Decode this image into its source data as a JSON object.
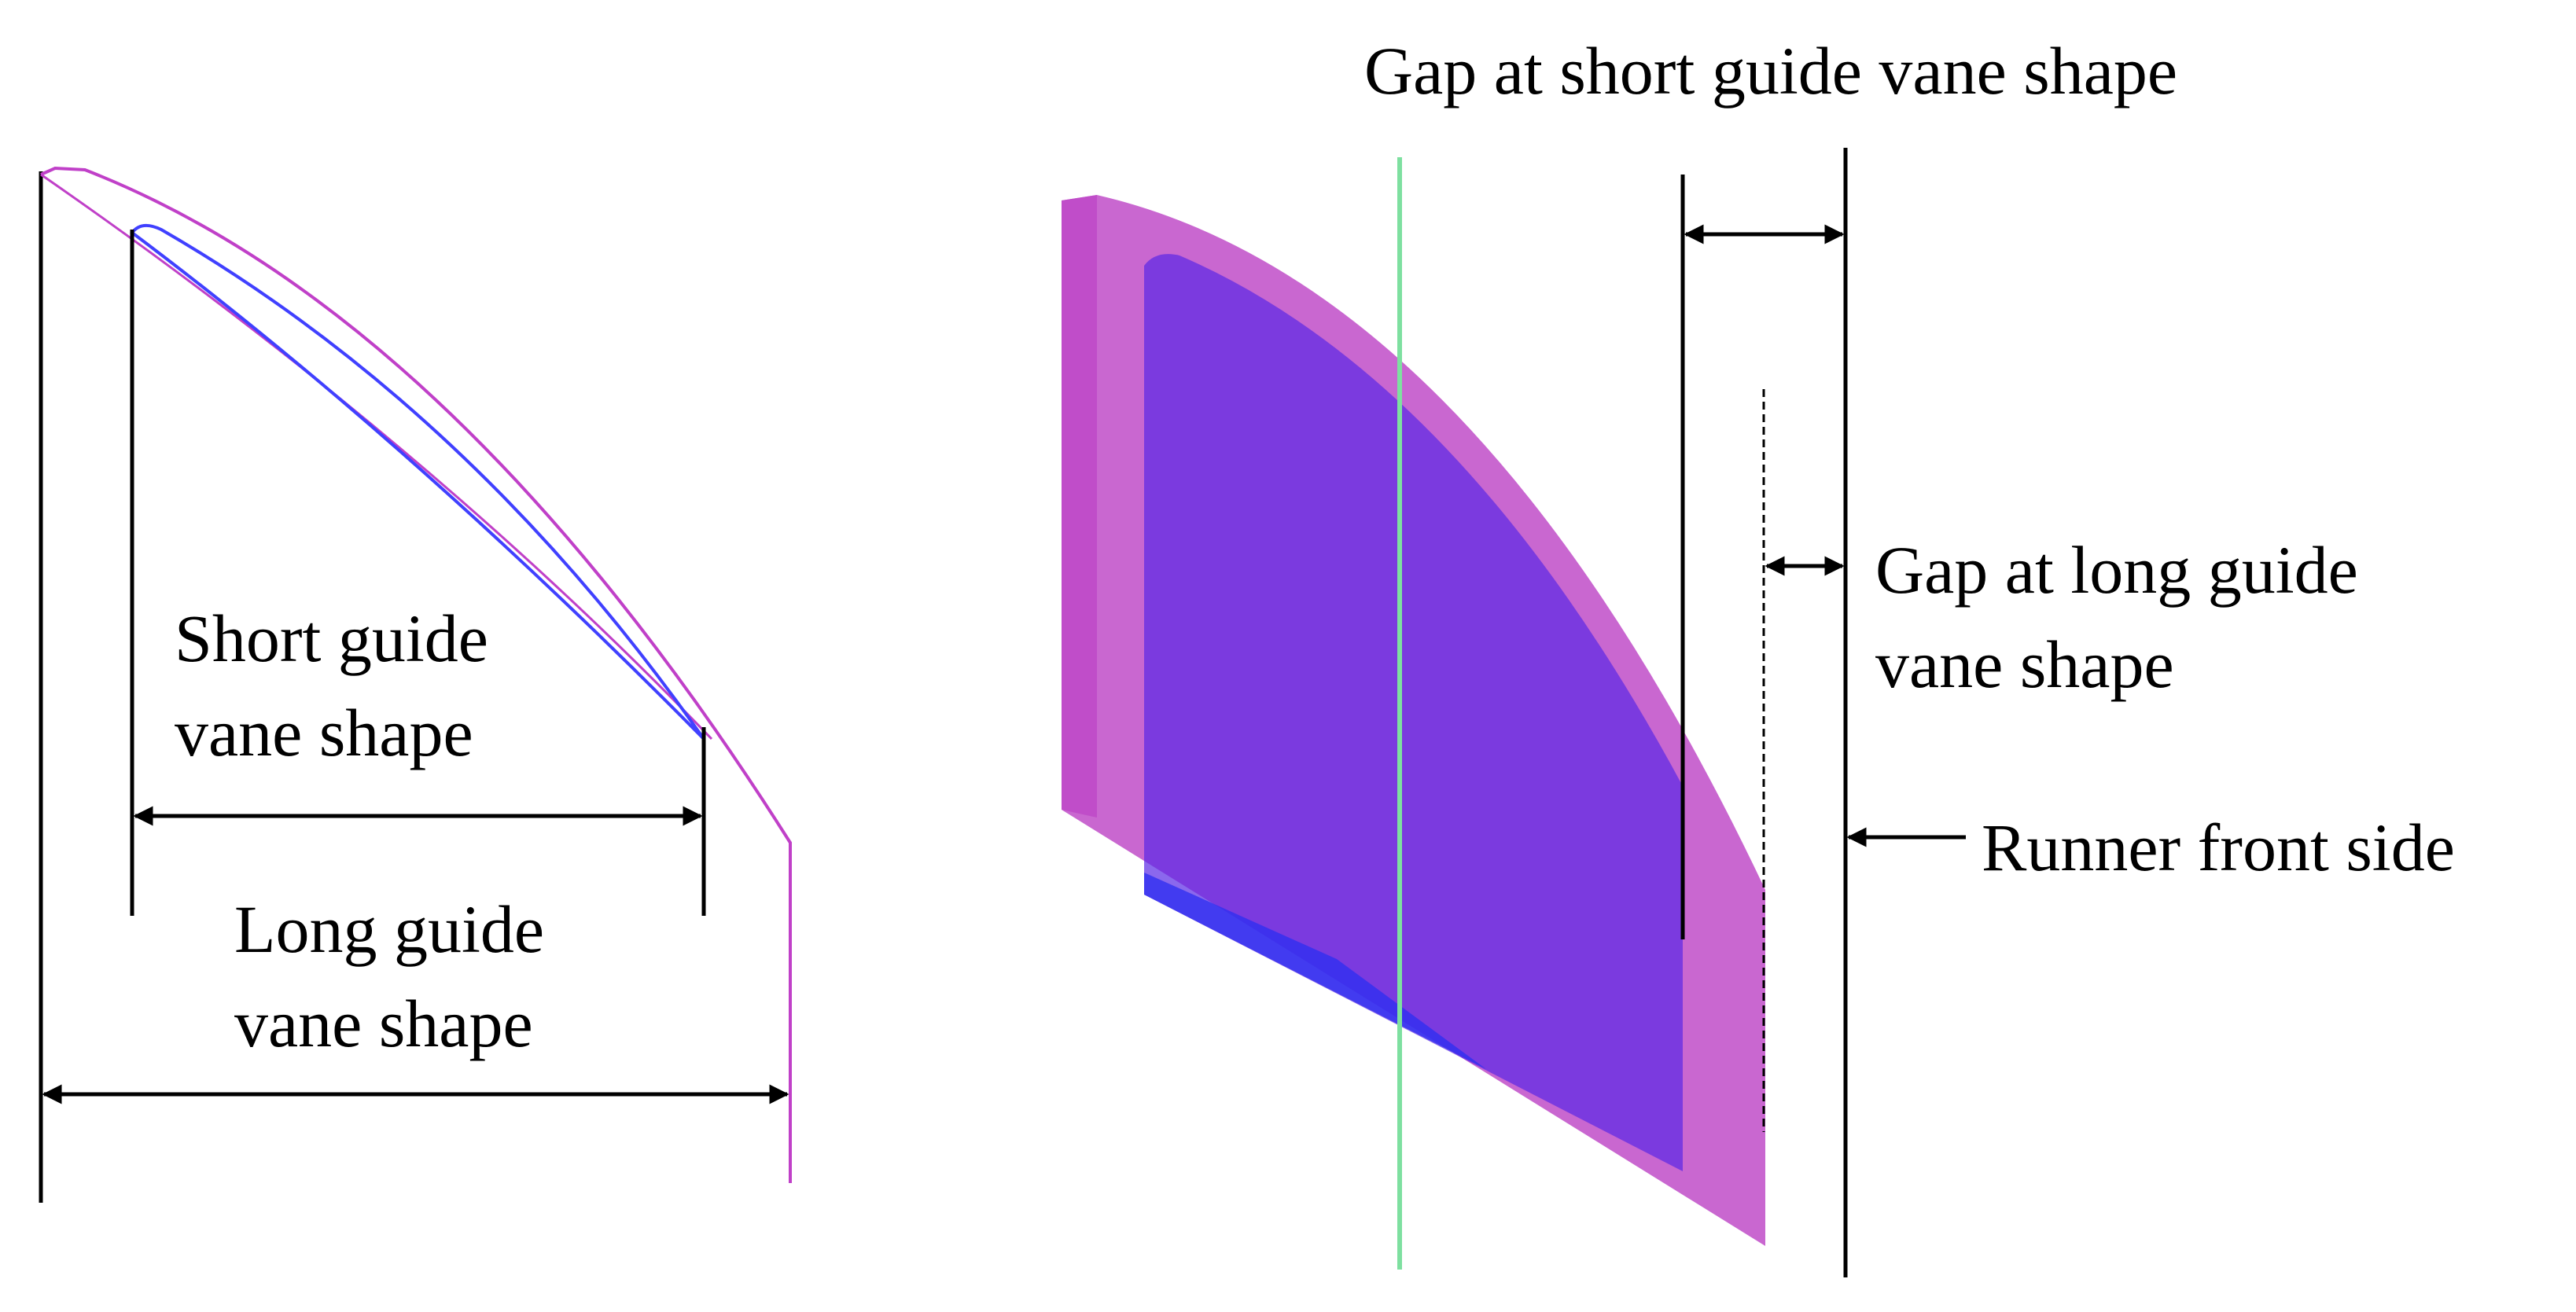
{
  "labels": {
    "short_vane": [
      "Short guide",
      "vane shape"
    ],
    "long_vane": [
      "Long guide",
      "vane shape"
    ],
    "gap_short": "Gap at short guide vane shape",
    "gap_long": [
      "Gap at long guide",
      "vane shape"
    ],
    "runner": "Runner front side"
  },
  "colors": {
    "long_vane_outline": "#c040c8",
    "short_vane_outline": "#4040ff",
    "long_vane_fill": "#c04cc8",
    "short_vane_fill": "#5a28e6",
    "axis_line": "#7ee0a0",
    "dimension_line": "#000000"
  }
}
